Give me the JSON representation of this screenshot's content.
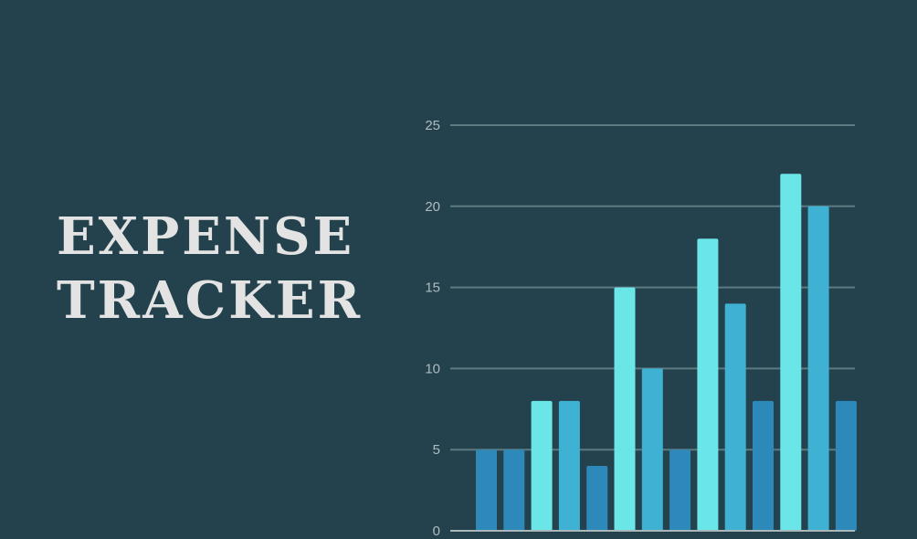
{
  "header": {
    "title_line1": "EXPENSE",
    "title_line2": "TRACKER"
  },
  "colors": {
    "background": "#24424d",
    "title": "#e3e3e3",
    "gridline": "#5d7a82",
    "axis": "#aab8bc",
    "tick_label": "#aebcc0",
    "series_colors": [
      "#6ae5e8",
      "#3fb1d3",
      "#2e89bb"
    ]
  },
  "chart_data": {
    "type": "bar",
    "title": "",
    "xlabel": "",
    "ylabel": "",
    "ylim": [
      0,
      25
    ],
    "yticks": [
      0,
      5,
      10,
      15,
      20,
      25
    ],
    "grid": true,
    "legend": "none",
    "bars": [
      {
        "value": 5,
        "color": "#2e89bb"
      },
      {
        "value": 5,
        "color": "#2e89bb"
      },
      {
        "value": 8,
        "color": "#6ae5e8"
      },
      {
        "value": 8,
        "color": "#3fb1d3"
      },
      {
        "value": 4,
        "color": "#2e89bb"
      },
      {
        "value": 15,
        "color": "#6ae5e8"
      },
      {
        "value": 10,
        "color": "#3fb1d3"
      },
      {
        "value": 5,
        "color": "#2e89bb"
      },
      {
        "value": 18,
        "color": "#6ae5e8"
      },
      {
        "value": 14,
        "color": "#3fb1d3"
      },
      {
        "value": 8,
        "color": "#2e89bb"
      },
      {
        "value": 22,
        "color": "#6ae5e8"
      },
      {
        "value": 20,
        "color": "#3fb1d3"
      },
      {
        "value": 8,
        "color": "#2e89bb"
      }
    ]
  }
}
